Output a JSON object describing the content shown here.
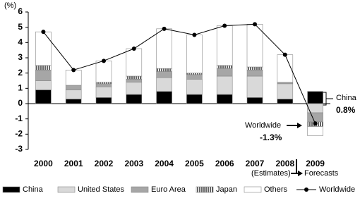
{
  "chart_data": {
    "type": "stacked-bar-line",
    "y_label": "(%)",
    "categories": [
      "2000",
      "2001",
      "2002",
      "2003",
      "2004",
      "2005",
      "2006",
      "2007",
      "2008",
      "2009"
    ],
    "series": [
      {
        "name": "China",
        "color": "#000000",
        "values": [
          0.9,
          0.3,
          0.4,
          0.6,
          0.8,
          0.6,
          0.6,
          0.4,
          0.3,
          0.8
        ]
      },
      {
        "name": "United States",
        "color": "#d9d9d9",
        "values": [
          0.6,
          0.6,
          0.7,
          0.8,
          0.9,
          1.0,
          1.2,
          1.4,
          1.0,
          -0.6
        ]
      },
      {
        "name": "Euro Area",
        "color": "#a6a6a6",
        "values": [
          0.7,
          0.3,
          0.2,
          0.2,
          0.4,
          0.3,
          0.5,
          0.4,
          0.1,
          -0.6
        ]
      },
      {
        "name": "Japan",
        "color": "#000000",
        "hatch": true,
        "values": [
          0.3,
          0.0,
          0.1,
          0.2,
          0.2,
          0.1,
          0.2,
          0.2,
          0.0,
          -0.3
        ]
      },
      {
        "name": "Others",
        "color": "#ffffff",
        "values": [
          2.2,
          1.0,
          1.4,
          1.8,
          2.6,
          2.5,
          2.6,
          2.8,
          1.8,
          -0.6
        ]
      }
    ],
    "line": {
      "name": "Worldwide",
      "color": "#000000",
      "values": [
        4.7,
        2.2,
        2.8,
        3.6,
        4.9,
        4.5,
        5.1,
        5.2,
        3.2,
        -1.3
      ]
    },
    "ylim": [
      -3,
      6
    ],
    "yticks": [
      -3,
      -2,
      -1,
      0,
      1,
      2,
      3,
      4,
      5,
      6
    ],
    "annotations": [
      "China",
      "0.8%",
      "Worldwide",
      "-1.3%",
      "(Estimates)",
      "Forecasts"
    ]
  }
}
